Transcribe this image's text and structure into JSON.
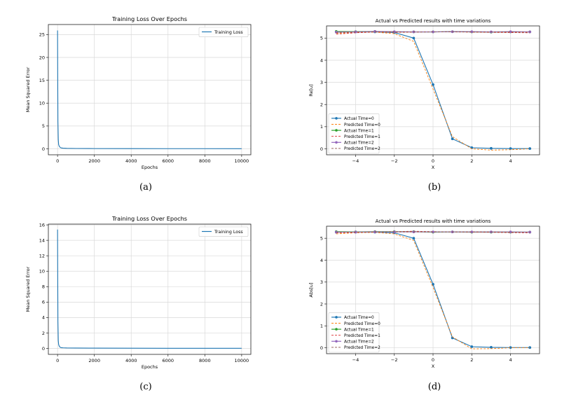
{
  "panels": [
    {
      "caption": "(a)",
      "chart_data": {
        "type": "line",
        "title": "Training Loss Over Epochs",
        "xlabel": "Epochs",
        "ylabel": "Mean Squared Error",
        "xlim": [
          -500,
          10500
        ],
        "ylim": [
          -1.3,
          27.2
        ],
        "xticks": [
          0,
          2000,
          4000,
          6000,
          8000,
          10000
        ],
        "yticks": [
          0,
          5,
          10,
          15,
          20,
          25
        ],
        "grid": true,
        "legend_position": "top-right",
        "series": [
          {
            "name": "Training Loss",
            "color": "#1f77b4",
            "x": [
              0,
              10,
              20,
              40,
              60,
              100,
              150,
              200,
              300,
              500,
              1000,
              2000,
              4000,
              6000,
              8000,
              10000
            ],
            "y": [
              25.9,
              15.0,
              6.0,
              2.0,
              0.9,
              0.5,
              0.3,
              0.2,
              0.15,
              0.1,
              0.08,
              0.06,
              0.05,
              0.04,
              0.04,
              0.03
            ]
          }
        ]
      }
    },
    {
      "caption": "(b)",
      "chart_data": {
        "type": "line",
        "title": "Actual vs Predicted results with time variations",
        "xlabel": "X",
        "ylabel": "Re[u]",
        "xlim": [
          -5.5,
          5.5
        ],
        "ylim": [
          -0.27,
          5.55
        ],
        "xticks": [
          -4,
          -2,
          0,
          2,
          4
        ],
        "yticks": [
          0,
          1,
          2,
          3,
          4,
          5
        ],
        "grid": true,
        "legend_position": "lower-left",
        "x": [
          -5,
          -4,
          -3,
          -2,
          -1,
          0,
          1,
          2,
          3,
          4,
          5
        ],
        "series": [
          {
            "name": "Actual Time=0",
            "color": "#1f77b4",
            "style": "solid-marker",
            "values": [
              5.28,
              5.28,
              5.28,
              5.25,
              5.0,
              2.9,
              0.45,
              0.05,
              0.02,
              0.01,
              0.01
            ]
          },
          {
            "name": "Predicted Time=0",
            "color": "#ff7f0e",
            "style": "dashed",
            "values": [
              5.22,
              5.25,
              5.27,
              5.2,
              4.85,
              2.7,
              0.55,
              0.0,
              -0.06,
              -0.04,
              0.0
            ]
          },
          {
            "name": "Actual Time=1",
            "color": "#2ca02c",
            "style": "solid-marker",
            "values": [
              5.3,
              5.29,
              5.3,
              5.28,
              5.28,
              5.28,
              5.29,
              5.28,
              5.27,
              5.28,
              5.28
            ]
          },
          {
            "name": "Predicted Time=1",
            "color": "#d62728",
            "style": "dashed",
            "values": [
              5.18,
              5.24,
              5.28,
              5.26,
              5.27,
              5.28,
              5.28,
              5.27,
              5.26,
              5.25,
              5.24
            ]
          },
          {
            "name": "Actual Time=2",
            "color": "#9467bd",
            "style": "solid-marker",
            "values": [
              5.27,
              5.28,
              5.3,
              5.29,
              5.28,
              5.28,
              5.29,
              5.29,
              5.28,
              5.29,
              5.28
            ]
          },
          {
            "name": "Predicted Time=2",
            "color": "#8c564b",
            "style": "dashed",
            "values": [
              5.25,
              5.27,
              5.29,
              5.28,
              5.28,
              5.28,
              5.29,
              5.28,
              5.28,
              5.28,
              5.27
            ]
          }
        ]
      }
    },
    {
      "caption": "(c)",
      "chart_data": {
        "type": "line",
        "title": "Training Loss Over Epochs",
        "xlabel": "Epochs",
        "ylabel": "Mean Squared Error",
        "xlim": [
          -500,
          10500
        ],
        "ylim": [
          -0.77,
          16.1
        ],
        "xticks": [
          0,
          2000,
          4000,
          6000,
          8000,
          10000
        ],
        "yticks": [
          0,
          2,
          4,
          6,
          8,
          10,
          12,
          14,
          16
        ],
        "grid": true,
        "legend_position": "top-right",
        "series": [
          {
            "name": "Training Loss",
            "color": "#1f77b4",
            "x": [
              0,
              10,
              20,
              40,
              60,
              100,
              150,
              200,
              300,
              500,
              1000,
              2000,
              4000,
              6000,
              8000,
              10000
            ],
            "y": [
              15.4,
              9.0,
              3.5,
              1.0,
              0.5,
              0.25,
              0.15,
              0.1,
              0.08,
              0.06,
              0.05,
              0.04,
              0.03,
              0.02,
              0.02,
              0.02
            ]
          }
        ]
      }
    },
    {
      "caption": "(d)",
      "chart_data": {
        "type": "line",
        "title": "Actual vs Predicted results with time variations",
        "xlabel": "X",
        "ylabel": "Abs[u]",
        "xlim": [
          -5.5,
          5.5
        ],
        "ylim": [
          -0.27,
          5.55
        ],
        "xticks": [
          -4,
          -2,
          0,
          2,
          4
        ],
        "yticks": [
          0,
          1,
          2,
          3,
          4,
          5
        ],
        "grid": true,
        "legend_position": "lower-left",
        "x": [
          -5,
          -4,
          -3,
          -2,
          -1,
          0,
          1,
          2,
          3,
          4,
          5
        ],
        "series": [
          {
            "name": "Actual Time=0",
            "color": "#1f77b4",
            "style": "solid-marker",
            "values": [
              5.28,
              5.28,
              5.28,
              5.25,
              5.0,
              2.9,
              0.45,
              0.05,
              0.02,
              0.01,
              0.01
            ]
          },
          {
            "name": "Predicted Time=0",
            "color": "#ff7f0e",
            "style": "dashed",
            "values": [
              5.2,
              5.25,
              5.27,
              5.2,
              4.9,
              2.75,
              0.5,
              -0.05,
              -0.04,
              0.0,
              0.0
            ]
          },
          {
            "name": "Actual Time=1",
            "color": "#2ca02c",
            "style": "solid-marker",
            "values": [
              5.3,
              5.29,
              5.3,
              5.3,
              5.3,
              5.28,
              5.29,
              5.28,
              5.28,
              5.28,
              5.28
            ]
          },
          {
            "name": "Predicted Time=1",
            "color": "#d62728",
            "style": "dashed",
            "values": [
              5.25,
              5.27,
              5.29,
              5.3,
              5.32,
              5.3,
              5.29,
              5.28,
              5.27,
              5.26,
              5.25
            ]
          },
          {
            "name": "Actual Time=2",
            "color": "#9467bd",
            "style": "solid-marker",
            "values": [
              5.28,
              5.28,
              5.29,
              5.29,
              5.29,
              5.29,
              5.29,
              5.29,
              5.29,
              5.29,
              5.28
            ]
          },
          {
            "name": "Predicted Time=2",
            "color": "#8c564b",
            "style": "dashed",
            "values": [
              5.27,
              5.28,
              5.29,
              5.29,
              5.29,
              5.29,
              5.29,
              5.29,
              5.29,
              5.28,
              5.27
            ]
          }
        ]
      }
    }
  ]
}
